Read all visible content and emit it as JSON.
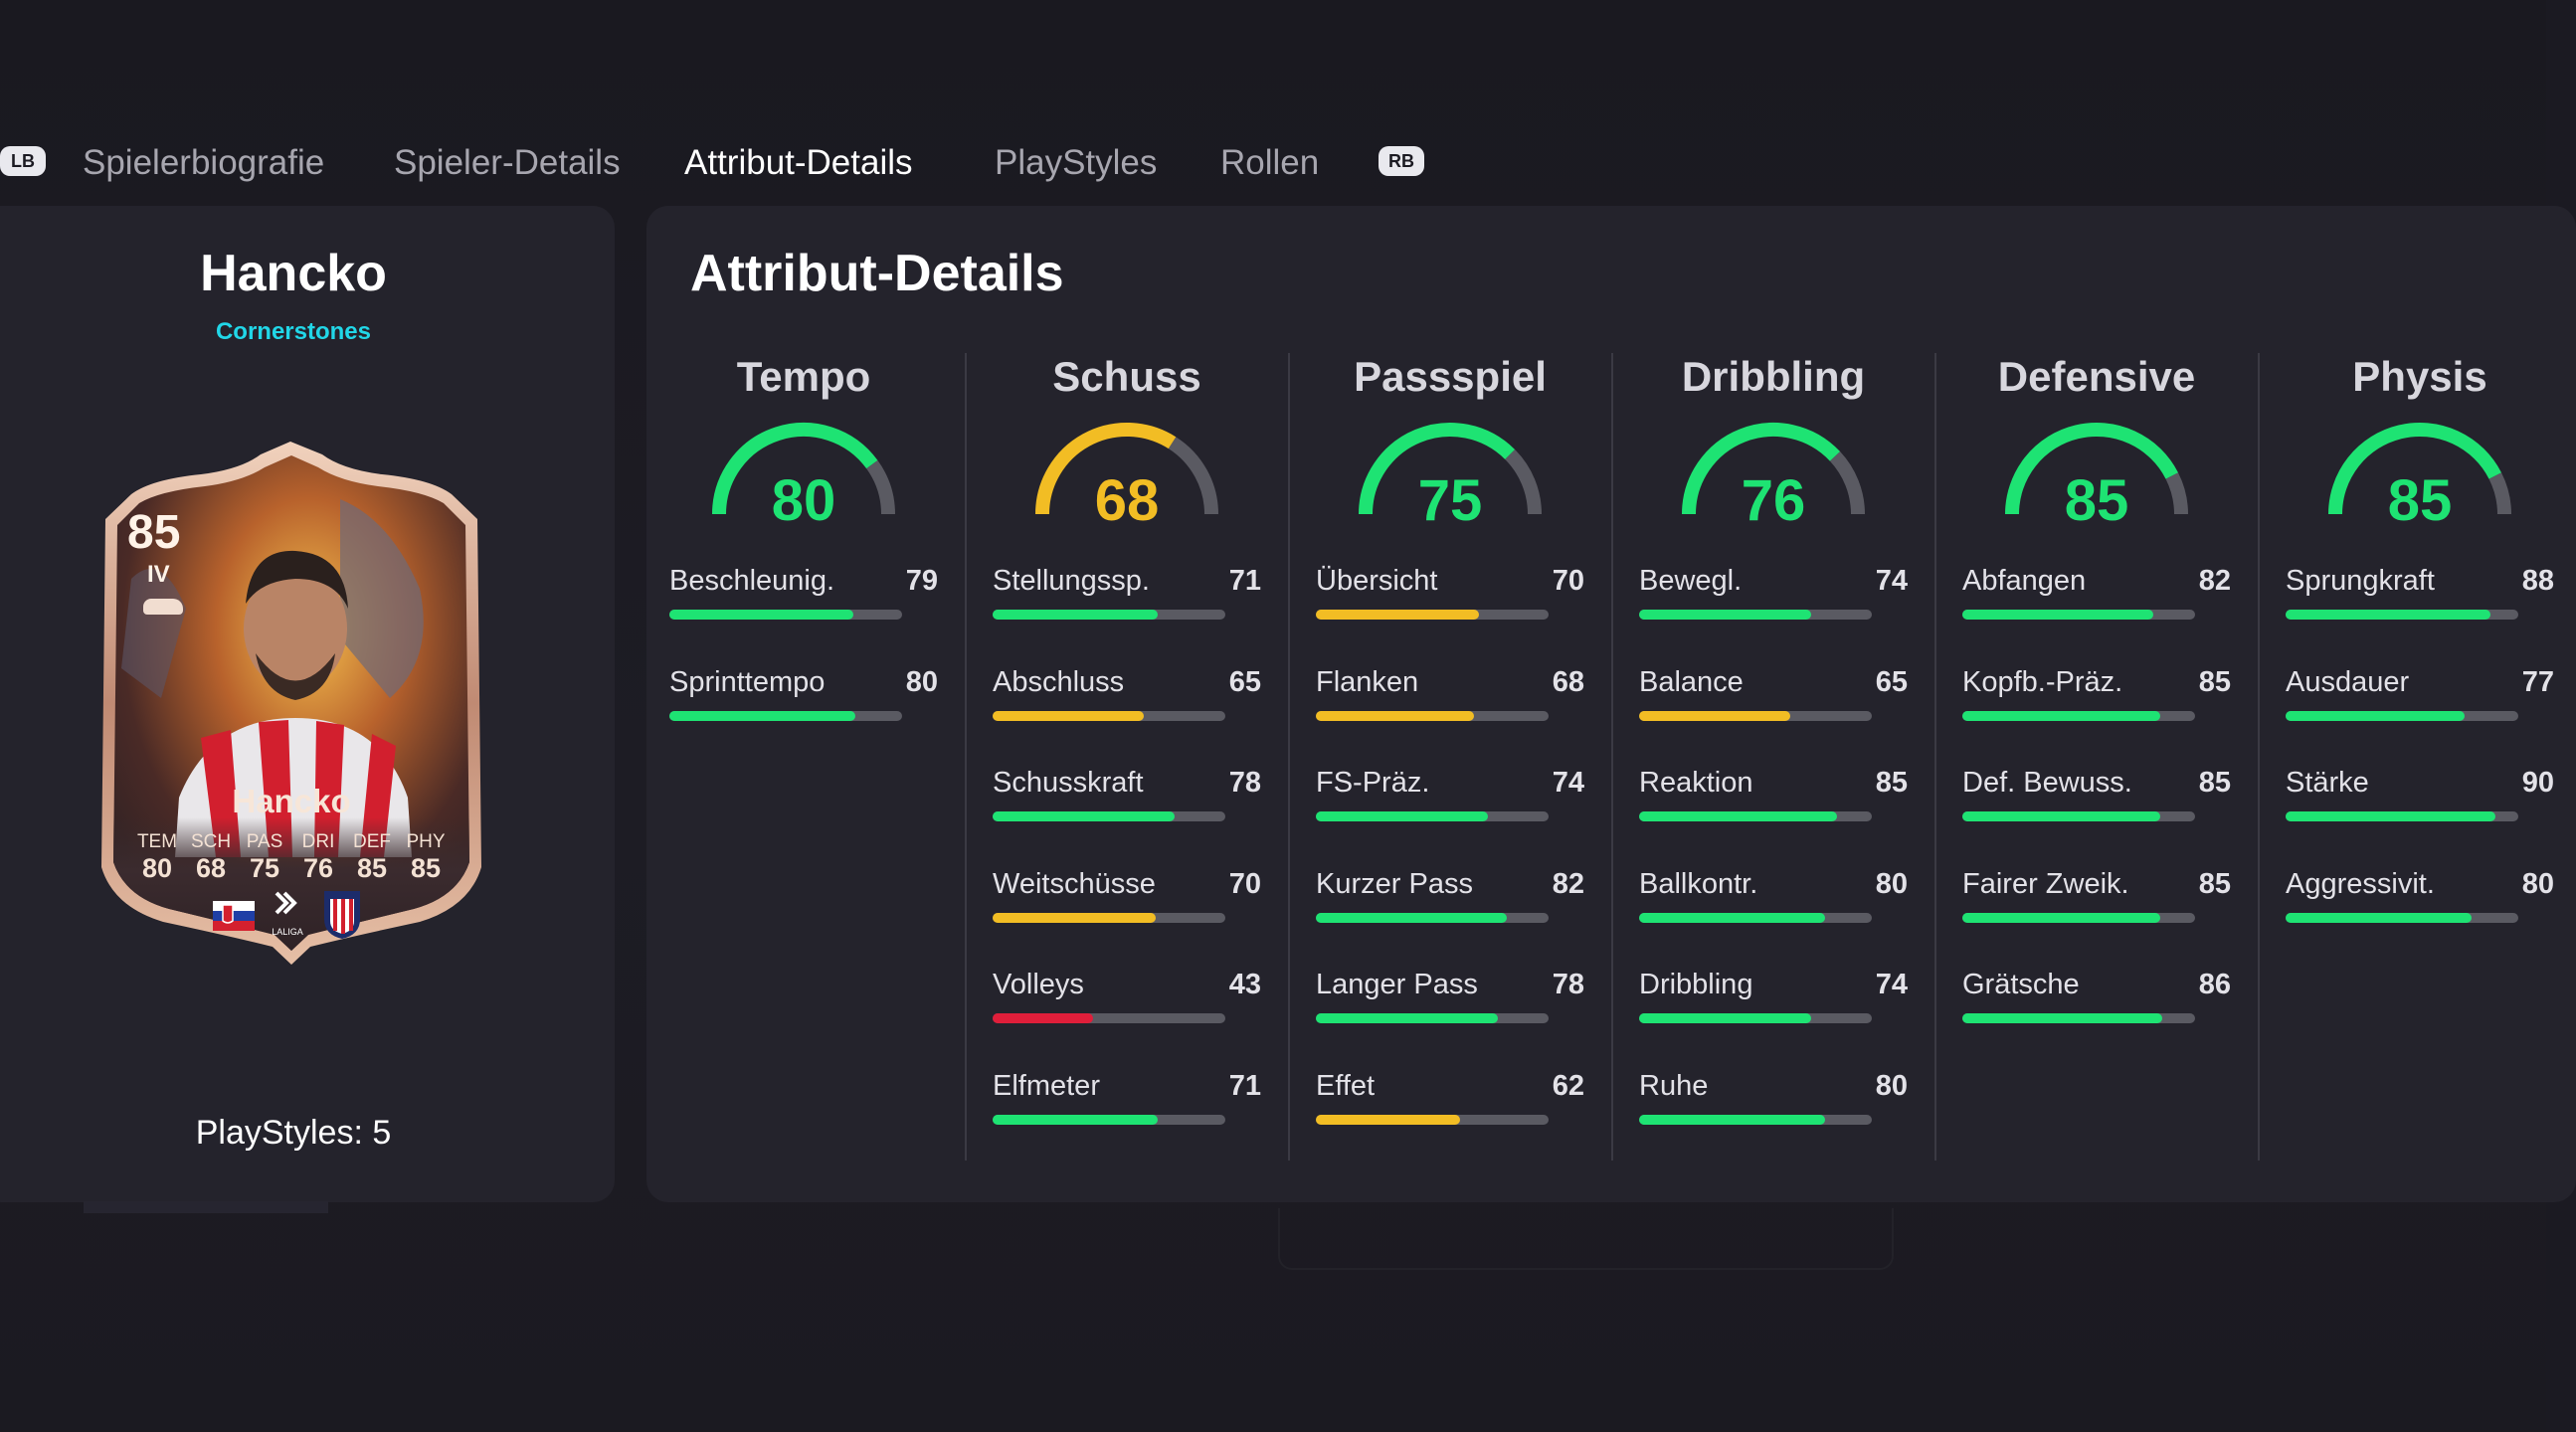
{
  "nav": {
    "lb": "LB",
    "rb": "RB",
    "tabs": [
      {
        "label": "Spielerbiografie"
      },
      {
        "label": "Spieler-Details"
      },
      {
        "label": "Attribut-Details",
        "active": true
      },
      {
        "label": "PlayStyles"
      },
      {
        "label": "Rollen"
      }
    ]
  },
  "player": {
    "name": "Hancko",
    "subtitle": "Cornerstones",
    "playstyles": "PlayStyles: 5",
    "card": {
      "rating": "85",
      "position": "IV",
      "name": "Hancko",
      "stats": [
        {
          "label": "TEM",
          "value": "80"
        },
        {
          "label": "SCH",
          "value": "68"
        },
        {
          "label": "PAS",
          "value": "75"
        },
        {
          "label": "DRI",
          "value": "76"
        },
        {
          "label": "DEF",
          "value": "85"
        },
        {
          "label": "PHY",
          "value": "85"
        }
      ],
      "league_text": "LALIGA"
    }
  },
  "panel": {
    "title": "Attribut-Details"
  },
  "colors": {
    "green": "#1ee373",
    "yellow": "#f2bd24",
    "red": "#e01e3a",
    "track": "#5a5a62"
  },
  "categories": [
    {
      "name": "Tempo",
      "value": 80,
      "color": "green",
      "attrs": [
        {
          "label": "Beschleunig.",
          "value": 79,
          "color": "green"
        },
        {
          "label": "Sprinttempo",
          "value": 80,
          "color": "green"
        }
      ]
    },
    {
      "name": "Schuss",
      "value": 68,
      "color": "yellow",
      "attrs": [
        {
          "label": "Stellungssp.",
          "value": 71,
          "color": "green"
        },
        {
          "label": "Abschluss",
          "value": 65,
          "color": "yellow"
        },
        {
          "label": "Schusskraft",
          "value": 78,
          "color": "green"
        },
        {
          "label": "Weitschüsse",
          "value": 70,
          "color": "yellow"
        },
        {
          "label": "Volleys",
          "value": 43,
          "color": "red"
        },
        {
          "label": "Elfmeter",
          "value": 71,
          "color": "green"
        }
      ]
    },
    {
      "name": "Passspiel",
      "value": 75,
      "color": "green",
      "attrs": [
        {
          "label": "Übersicht",
          "value": 70,
          "color": "yellow"
        },
        {
          "label": "Flanken",
          "value": 68,
          "color": "yellow"
        },
        {
          "label": "FS-Präz.",
          "value": 74,
          "color": "green"
        },
        {
          "label": "Kurzer Pass",
          "value": 82,
          "color": "green"
        },
        {
          "label": "Langer Pass",
          "value": 78,
          "color": "green"
        },
        {
          "label": "Effet",
          "value": 62,
          "color": "yellow"
        }
      ]
    },
    {
      "name": "Dribbling",
      "value": 76,
      "color": "green",
      "attrs": [
        {
          "label": "Bewegl.",
          "value": 74,
          "color": "green"
        },
        {
          "label": "Balance",
          "value": 65,
          "color": "yellow"
        },
        {
          "label": "Reaktion",
          "value": 85,
          "color": "green"
        },
        {
          "label": "Ballkontr.",
          "value": 80,
          "color": "green"
        },
        {
          "label": "Dribbling",
          "value": 74,
          "color": "green"
        },
        {
          "label": "Ruhe",
          "value": 80,
          "color": "green"
        }
      ]
    },
    {
      "name": "Defensive",
      "value": 85,
      "color": "green",
      "attrs": [
        {
          "label": "Abfangen",
          "value": 82,
          "color": "green"
        },
        {
          "label": "Kopfb.-Präz.",
          "value": 85,
          "color": "green"
        },
        {
          "label": "Def. Bewuss.",
          "value": 85,
          "color": "green"
        },
        {
          "label": "Fairer Zweik.",
          "value": 85,
          "color": "green"
        },
        {
          "label": "Grätsche",
          "value": 86,
          "color": "green"
        }
      ]
    },
    {
      "name": "Physis",
      "value": 85,
      "color": "green",
      "attrs": [
        {
          "label": "Sprungkraft",
          "value": 88,
          "color": "green"
        },
        {
          "label": "Ausdauer",
          "value": 77,
          "color": "green"
        },
        {
          "label": "Stärke",
          "value": 90,
          "color": "green"
        },
        {
          "label": "Aggressivit.",
          "value": 80,
          "color": "green"
        }
      ]
    }
  ]
}
